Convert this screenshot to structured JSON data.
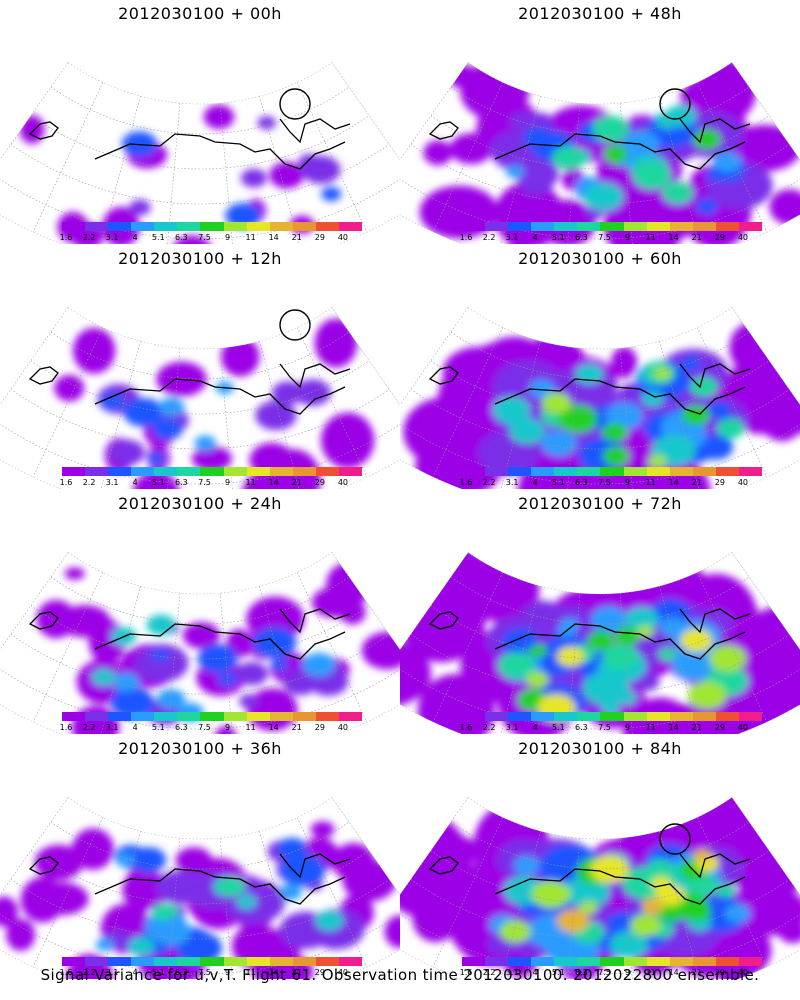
{
  "footer": "Signal Variance for u,v,T. Flight 61. Observation time 2012030100. 2012022800 ensemble.",
  "colorbar": {
    "colors": [
      "#9b00e6",
      "#7a2fe8",
      "#1f55ff",
      "#2a9cff",
      "#18c8cc",
      "#1ed7a0",
      "#20d020",
      "#a0e632",
      "#e6e628",
      "#e6b432",
      "#e69632",
      "#f05032",
      "#f01e8c"
    ],
    "ticks": [
      "1.6",
      "2.2",
      "3.1",
      "4",
      "5.1",
      "6.3",
      "7.5",
      "9",
      "11",
      "14",
      "21",
      "29",
      "40"
    ]
  },
  "panels": [
    {
      "title": "2012030100 + 00h",
      "intensity": 0,
      "circle": true
    },
    {
      "title": "2012030100 + 48h",
      "intensity": 4,
      "circle": true
    },
    {
      "title": "2012030100 + 12h",
      "intensity": 1,
      "circle": true
    },
    {
      "title": "2012030100 + 60h",
      "intensity": 5,
      "circle": false
    },
    {
      "title": "2012030100 + 24h",
      "intensity": 2,
      "circle": false
    },
    {
      "title": "2012030100 + 72h",
      "intensity": 6,
      "circle": false
    },
    {
      "title": "2012030100 + 36h",
      "intensity": 3,
      "circle": false
    },
    {
      "title": "2012030100 + 84h",
      "intensity": 7,
      "circle": true
    }
  ]
}
